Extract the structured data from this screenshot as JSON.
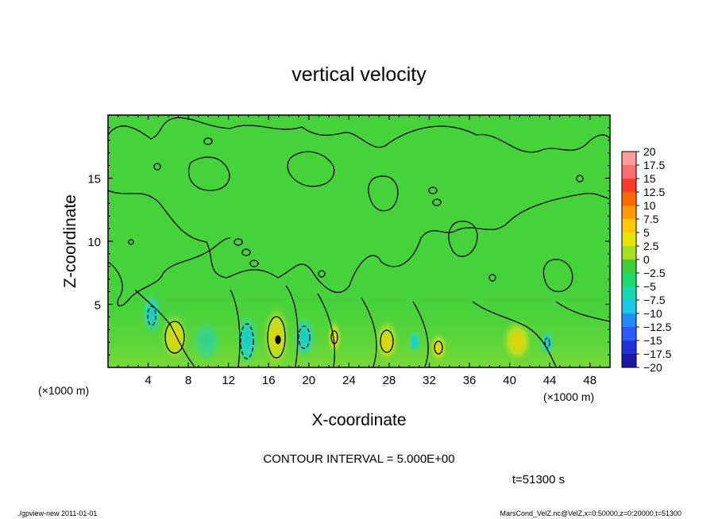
{
  "chart_data": {
    "type": "heatmap",
    "title": "vertical velocity",
    "xlabel": "X-coordinate",
    "ylabel": "Z-coordinate",
    "x_unit_left": "(×1000 m)",
    "x_unit_right": "(×1000 m)",
    "xlim": [
      0,
      50
    ],
    "ylim": [
      0,
      20
    ],
    "x_ticks": [
      "4",
      "8",
      "12",
      "16",
      "20",
      "24",
      "28",
      "32",
      "36",
      "40",
      "44",
      "48"
    ],
    "y_ticks": [
      "5",
      "10",
      "15"
    ],
    "colorbar_labels": [
      "20",
      "17.5",
      "15",
      "12.5",
      "10",
      "7.5",
      "5",
      "2.5",
      "0",
      "−2.5",
      "−5",
      "−7.5",
      "−10",
      "−12.5",
      "−15",
      "−17.5",
      "−20"
    ],
    "colorbar_colors": [
      "#ff9a9a",
      "#ff6e6e",
      "#ff3a2a",
      "#ff6a00",
      "#ff9a00",
      "#ffc800",
      "#e6e600",
      "#a6e01e",
      "#3fcf3a",
      "#1ed96e",
      "#16d8b0",
      "#19c8e6",
      "#1f8cff",
      "#2f5aff",
      "#2330d8",
      "#1a1aa6",
      "#6a1ab4"
    ],
    "contour_interval_text": "CONTOUR INTERVAL = 5.000E+00",
    "time_text": "t=51300 s",
    "grid": false
  },
  "footer": {
    "left": "./gpview-new   2011-01-01",
    "right": "MarsCond_VelZ.nc@VelZ,x=0:50000,z=0:20000,t=51300"
  }
}
